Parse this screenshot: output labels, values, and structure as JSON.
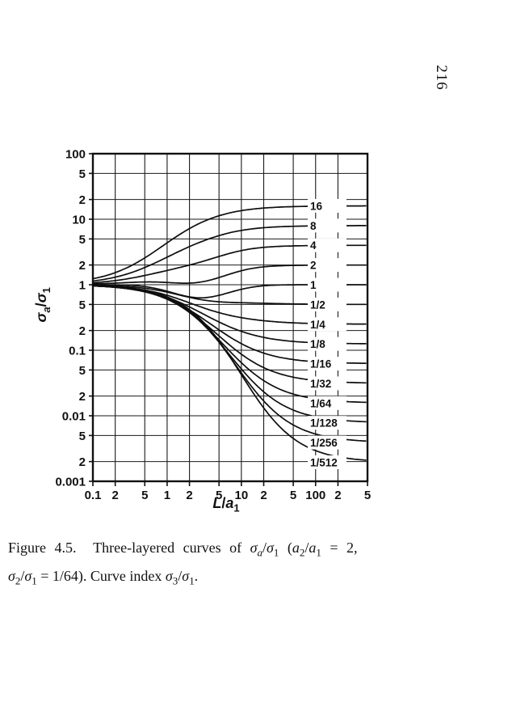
{
  "page": {
    "number": "216"
  },
  "chart_data": {
    "type": "line",
    "x_scale": "log",
    "y_scale": "log",
    "xlim": [
      0.1,
      500
    ],
    "ylim": [
      0.001,
      100
    ],
    "xlabel": "L/a1",
    "ylabel": "sigma_a/sigma_1",
    "curve_index_label": "sigma_3/sigma_1",
    "grid": true,
    "start_value": 1,
    "x_ticks": [
      0.1,
      0.2,
      0.5,
      1,
      2,
      5,
      10,
      20,
      50,
      100,
      200,
      500
    ],
    "x_tick_labels": [
      "0.1",
      "2",
      "5",
      "1",
      "2",
      "5",
      "10",
      "2",
      "5",
      "100",
      "2",
      "5"
    ],
    "y_ticks": [
      100,
      50,
      20,
      10,
      5,
      2,
      1,
      0.5,
      0.2,
      0.1,
      0.05,
      0.02,
      0.01,
      0.005,
      0.002,
      0.001
    ],
    "y_tick_labels": [
      "100",
      "5",
      "2",
      "10",
      "5",
      "2",
      "1",
      "5",
      "2",
      "0.1",
      "5",
      "2",
      "0.01",
      "5",
      "2",
      "0.001"
    ],
    "dip": {
      "center": 0.45,
      "width": 0.38,
      "max_depth": 0.2,
      "falloff": 0.4
    },
    "curves": [
      {
        "label": "16",
        "value": 16,
        "mid": -0.05,
        "width": 0.38
      },
      {
        "label": "8",
        "value": 8,
        "mid": 0.03,
        "width": 0.38
      },
      {
        "label": "4",
        "value": 4,
        "mid": 0.11,
        "width": 0.38
      },
      {
        "label": "2",
        "value": 2,
        "mid": 0.19,
        "width": 0.38
      },
      {
        "label": "1",
        "value": 1,
        "mid": 0.27,
        "width": 0.38
      },
      {
        "label": "1/2",
        "value": 0.5,
        "mid": 0.35,
        "width": 0.38
      },
      {
        "label": "1/4",
        "value": 0.25,
        "mid": 0.43,
        "width": 0.38
      },
      {
        "label": "1/8",
        "value": 0.125,
        "mid": 0.51,
        "width": 0.38
      },
      {
        "label": "1/16",
        "value": 0.0625,
        "mid": 0.59,
        "width": 0.38
      },
      {
        "label": "1/32",
        "value": 0.03125,
        "mid": 0.67,
        "width": 0.38
      },
      {
        "label": "1/64",
        "value": 0.015625,
        "mid": 0.75,
        "width": 0.38
      },
      {
        "label": "1/128",
        "value": 0.0078125,
        "mid": 0.83,
        "width": 0.38
      },
      {
        "label": "1/256",
        "value": 0.00390625,
        "mid": 0.91,
        "width": 0.38
      },
      {
        "label": "1/512",
        "value": 0.001953125,
        "mid": 0.99,
        "width": 0.38
      }
    ]
  },
  "axis_titles": {
    "y_segments": [
      {
        "text": "σ",
        "i": 1
      },
      {
        "text": "a",
        "i": 1,
        "sub": 1
      },
      {
        "text": "/"
      },
      {
        "text": "σ",
        "i": 1
      },
      {
        "text": "1",
        "sub": 1
      }
    ],
    "x_segments": [
      {
        "text": "L",
        "i": 1
      },
      {
        "text": "/"
      },
      {
        "text": "a",
        "i": 1
      },
      {
        "text": "1",
        "sub": 1
      }
    ]
  },
  "caption": {
    "lines": [
      [
        {
          "text": "Figure 4.5.  Three-layered curves of "
        },
        {
          "text": "σ",
          "i": 1
        },
        {
          "text": "a",
          "i": 1,
          "sub": 1
        },
        {
          "text": "/"
        },
        {
          "text": "σ",
          "i": 1
        },
        {
          "text": "1",
          "sub": 1
        },
        {
          "text": " ("
        },
        {
          "text": "a",
          "i": 1
        },
        {
          "text": "2",
          "sub": 1
        },
        {
          "text": "/"
        },
        {
          "text": "a",
          "i": 1
        },
        {
          "text": "1",
          "sub": 1
        },
        {
          "text": " = 2,"
        }
      ],
      [
        {
          "text": "σ",
          "i": 1
        },
        {
          "text": "2",
          "sub": 1
        },
        {
          "text": "/"
        },
        {
          "text": "σ",
          "i": 1
        },
        {
          "text": "1",
          "sub": 1
        },
        {
          "text": " = 1/64). Curve index "
        },
        {
          "text": "σ",
          "i": 1
        },
        {
          "text": "3",
          "sub": 1
        },
        {
          "text": "/"
        },
        {
          "text": "σ",
          "i": 1
        },
        {
          "text": "1",
          "sub": 1
        },
        {
          "text": "."
        }
      ]
    ]
  }
}
